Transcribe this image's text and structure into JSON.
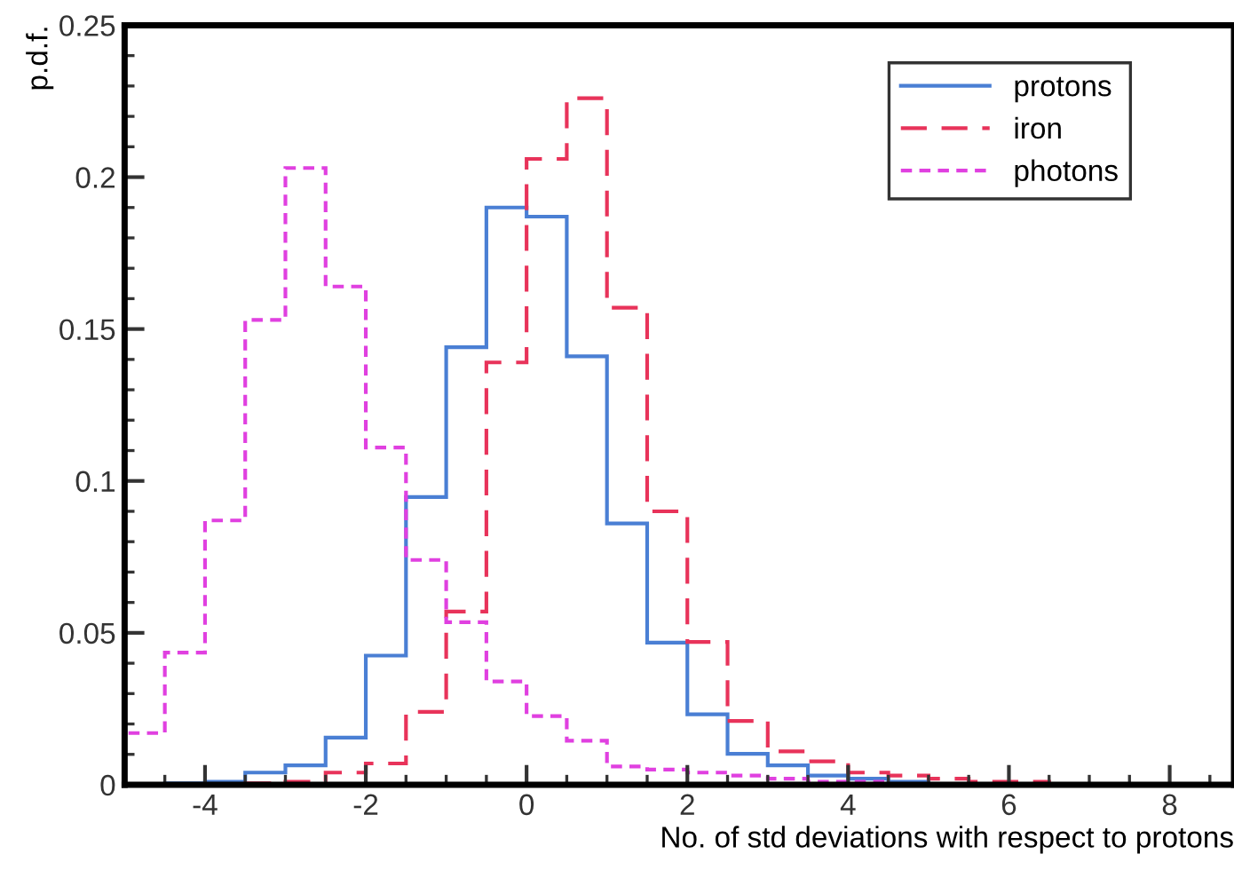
{
  "chart_data": {
    "type": "histogram",
    "xlabel": "No. of std deviations with respect to protons",
    "ylabel": "p.d.f.",
    "bins": [
      -5,
      -4.5,
      -4,
      -3.5,
      -3,
      -2.5,
      -2,
      -1.5,
      -1,
      -0.5,
      0,
      0.5,
      1,
      1.5,
      2,
      2.5,
      3,
      3.5,
      4,
      4.5,
      5,
      5.5,
      6,
      6.5,
      7,
      7.5,
      8,
      8.5
    ],
    "series": [
      {
        "name": "protons",
        "color": "#4a7fd4",
        "line_style": "solid",
        "values": [
          0,
          0.0005,
          0.001,
          0.004,
          0.0064,
          0.0155,
          0.0425,
          0.0947,
          0.144,
          0.19,
          0.187,
          0.141,
          0.086,
          0.0468,
          0.0232,
          0.0102,
          0.0064,
          0.003,
          0.002,
          0.001,
          0,
          0,
          0,
          0,
          0,
          0,
          0
        ]
      },
      {
        "name": "iron",
        "color": "#e8335a",
        "line_style": "dashed",
        "values": [
          0,
          0,
          0,
          0.0005,
          0.001,
          0.004,
          0.007,
          0.024,
          0.057,
          0.139,
          0.206,
          0.226,
          0.157,
          0.09,
          0.047,
          0.021,
          0.011,
          0.0077,
          0.004,
          0.003,
          0.002,
          0.001,
          0.001,
          0,
          0,
          0,
          0
        ]
      },
      {
        "name": "photons",
        "color": "#e040e0",
        "line_style": "dotted",
        "values": [
          0.017,
          0.0435,
          0.087,
          0.153,
          0.203,
          0.164,
          0.111,
          0.074,
          0.0535,
          0.034,
          0.0226,
          0.0145,
          0.006,
          0.005,
          0.004,
          0.003,
          0.002,
          0.001,
          0.001,
          0,
          0,
          0,
          0,
          0,
          0,
          0,
          0
        ]
      }
    ],
    "xlim": [
      -5,
      8.8
    ],
    "ylim": [
      0,
      0.25
    ],
    "xticks": [
      -4,
      -2,
      0,
      2,
      4,
      6,
      8
    ],
    "yticks": [
      0,
      0.05,
      0.1,
      0.15,
      0.2,
      0.25
    ],
    "legend": "top right"
  }
}
